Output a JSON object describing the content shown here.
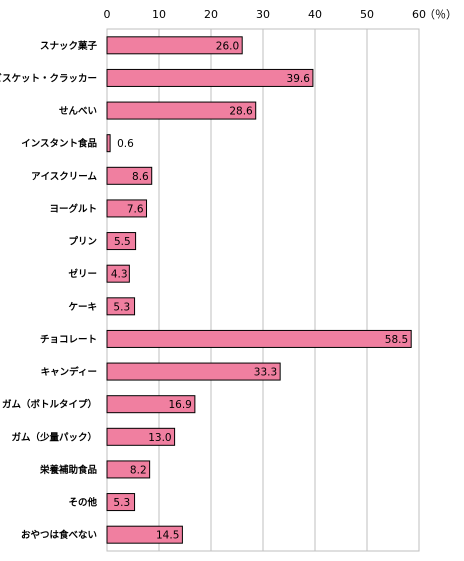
{
  "chart_data": {
    "type": "bar",
    "orientation": "horizontal",
    "unit": "（％）",
    "xlim": [
      0,
      60
    ],
    "xticks": [
      "0",
      "10",
      "20",
      "30",
      "40",
      "50",
      "60"
    ],
    "grid": true,
    "bar_color": "#f07fa0",
    "bar_stroke": "#000000",
    "categories": [
      "スナック菓子",
      "ビスケット・クラッカー",
      "せんべい",
      "インスタント食品",
      "アイスクリーム",
      "ヨーグルト",
      "プリン",
      "ゼリー",
      "ケーキ",
      "チョコレート",
      "キャンディー",
      "ガム（ボトルタイプ）",
      "ガム（少量パック）",
      "栄養補助食品",
      "その他",
      "おやつは食べない"
    ],
    "values": [
      26.0,
      39.6,
      28.6,
      0.6,
      8.6,
      7.6,
      5.5,
      4.3,
      5.3,
      58.5,
      33.3,
      16.9,
      13.0,
      8.2,
      5.3,
      14.5
    ],
    "value_labels": [
      "26.0",
      "39.6",
      "28.6",
      "0.6",
      "8.6",
      "7.6",
      "5.5",
      "4.3",
      "5.3",
      "58.5",
      "33.3",
      "16.9",
      "13.0",
      "8.2",
      "5.3",
      "14.5"
    ]
  }
}
